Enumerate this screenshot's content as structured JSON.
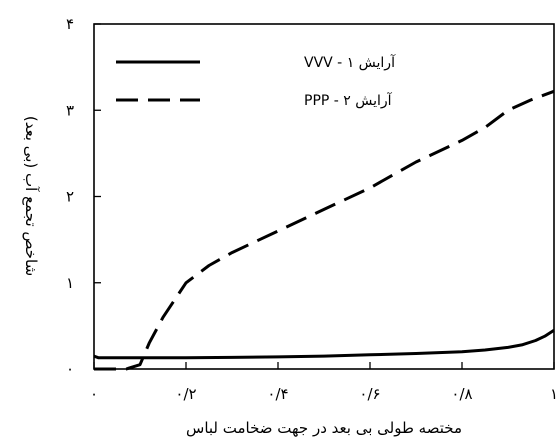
{
  "chart_data": {
    "type": "line",
    "xlabel": "مختصه طولی بی بعد در جهت ضخامت لباس",
    "ylabel": "شاخص تجمع آب (بی بعد)",
    "xlim": [
      0,
      1
    ],
    "ylim": [
      0,
      4
    ],
    "x_ticks": [
      0,
      0.2,
      0.4,
      0.6,
      0.8,
      1
    ],
    "x_tick_labels": [
      "۰",
      "۰/۲",
      "۰/۴",
      "۰/۶",
      "۰/۸",
      "۱"
    ],
    "y_ticks": [
      0,
      1,
      2,
      3,
      4
    ],
    "y_tick_labels": [
      "۰",
      "۱",
      "۲",
      "۳",
      "۴"
    ],
    "grid": false,
    "legend_position": "top-left",
    "series": [
      {
        "name": "آرایش ۱ - VVV",
        "style": "solid",
        "color": "#000000",
        "x": [
          0,
          0.01,
          0.05,
          0.1,
          0.2,
          0.3,
          0.4,
          0.5,
          0.6,
          0.7,
          0.8,
          0.85,
          0.9,
          0.93,
          0.96,
          0.98,
          1.0
        ],
        "y": [
          0.15,
          0.13,
          0.13,
          0.13,
          0.13,
          0.135,
          0.14,
          0.15,
          0.165,
          0.18,
          0.2,
          0.22,
          0.25,
          0.28,
          0.33,
          0.38,
          0.45
        ]
      },
      {
        "name": "آرایش ۲ - PPP",
        "style": "dashed",
        "color": "#000000",
        "x": [
          0,
          0.07,
          0.1,
          0.12,
          0.15,
          0.2,
          0.25,
          0.3,
          0.4,
          0.5,
          0.6,
          0.7,
          0.8,
          0.85,
          0.9,
          0.95,
          1.0
        ],
        "y": [
          0.0,
          0.0,
          0.05,
          0.3,
          0.6,
          1.0,
          1.2,
          1.35,
          1.6,
          1.85,
          2.1,
          2.4,
          2.65,
          2.8,
          3.0,
          3.12,
          3.22
        ]
      }
    ]
  }
}
